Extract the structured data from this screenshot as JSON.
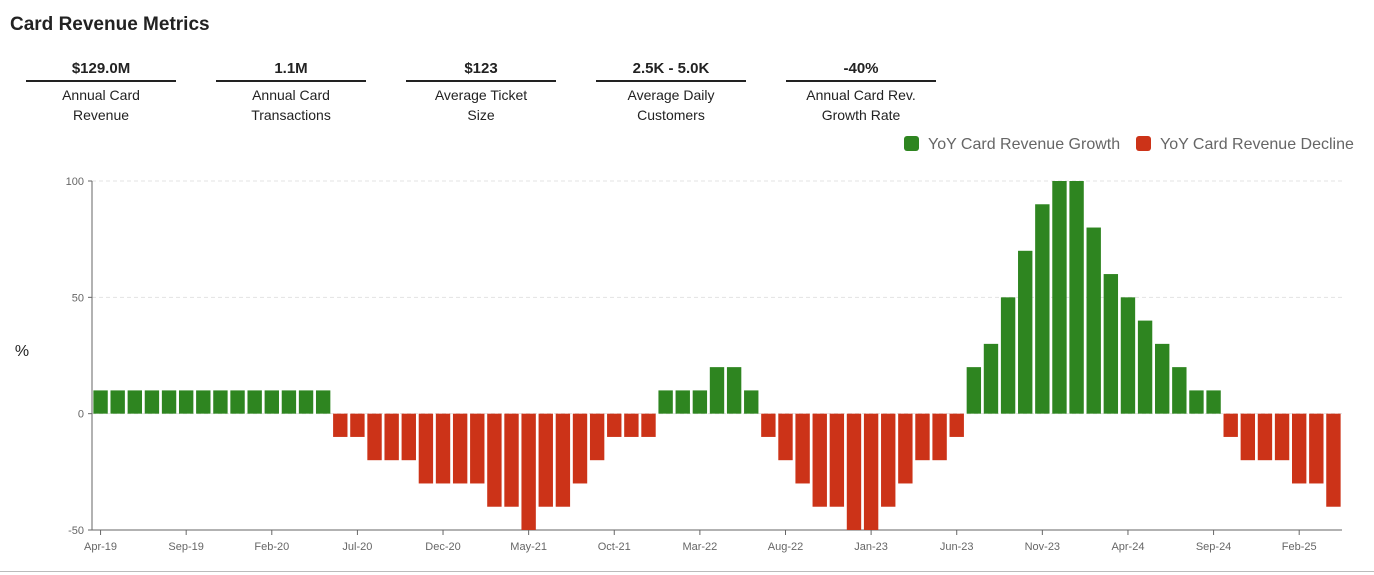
{
  "title": "Card Revenue Metrics",
  "metrics": [
    {
      "value": "$129.0M",
      "label": "Annual Card Revenue"
    },
    {
      "value": "1.1M",
      "label": "Annual Card Transactions"
    },
    {
      "value": "$123",
      "label": "Average Ticket Size"
    },
    {
      "value": "2.5K - 5.0K",
      "label": "Average Daily Customers"
    },
    {
      "value": "-40%",
      "label": "Annual Card Rev. Growth Rate"
    }
  ],
  "chart_data": {
    "type": "bar",
    "ylabel": "%",
    "categories": [
      "Apr-19",
      null,
      null,
      null,
      null,
      "Sep-19",
      null,
      null,
      null,
      null,
      "Feb-20",
      null,
      null,
      null,
      null,
      "Jul-20",
      null,
      null,
      null,
      null,
      "Dec-20",
      null,
      null,
      null,
      null,
      "May-21",
      null,
      null,
      null,
      null,
      "Oct-21",
      null,
      null,
      null,
      null,
      "Mar-22",
      null,
      null,
      null,
      null,
      "Aug-22",
      null,
      null,
      null,
      null,
      "Jan-23",
      null,
      null,
      null,
      null,
      "Jun-23",
      null,
      null,
      null,
      null,
      "Nov-23",
      null,
      null,
      null,
      null,
      "Apr-24",
      null,
      null,
      null,
      null,
      "Sep-24",
      null,
      null,
      null,
      null,
      "Feb-25",
      null,
      null
    ],
    "series": [
      {
        "name": "YoY Card Revenue Growth",
        "color": "#2e8520",
        "values": [
          10,
          10,
          10,
          10,
          10,
          10,
          10,
          10,
          10,
          10,
          10,
          10,
          10,
          10,
          null,
          null,
          null,
          null,
          null,
          null,
          null,
          null,
          null,
          null,
          null,
          null,
          null,
          null,
          null,
          null,
          null,
          null,
          null,
          10,
          10,
          10,
          20,
          20,
          10,
          null,
          null,
          null,
          null,
          null,
          null,
          null,
          null,
          null,
          null,
          null,
          null,
          20,
          30,
          50,
          70,
          90,
          100,
          100,
          80,
          60,
          50,
          40,
          30,
          20,
          10,
          10,
          null,
          null,
          null,
          null,
          null,
          null,
          null
        ]
      },
      {
        "name": "YoY Card Revenue Decline",
        "color": "#cc3318",
        "values": [
          null,
          null,
          null,
          null,
          null,
          null,
          null,
          null,
          null,
          null,
          null,
          null,
          null,
          null,
          -10,
          -10,
          -20,
          -20,
          -20,
          -30,
          -30,
          -30,
          -30,
          -40,
          -40,
          -50,
          -40,
          -40,
          -30,
          -20,
          -10,
          -10,
          -10,
          null,
          null,
          null,
          null,
          null,
          null,
          -10,
          -20,
          -30,
          -40,
          -40,
          -50,
          -50,
          -40,
          -30,
          -20,
          -20,
          -10,
          null,
          null,
          null,
          null,
          null,
          null,
          null,
          null,
          null,
          null,
          null,
          null,
          null,
          null,
          null,
          -10,
          -20,
          -20,
          -20,
          -30,
          -30,
          -40
        ]
      }
    ],
    "ylim": [
      -50,
      100
    ],
    "yticks": [
      -50,
      0,
      50,
      100
    ],
    "grid": true,
    "legend": "top-right"
  }
}
